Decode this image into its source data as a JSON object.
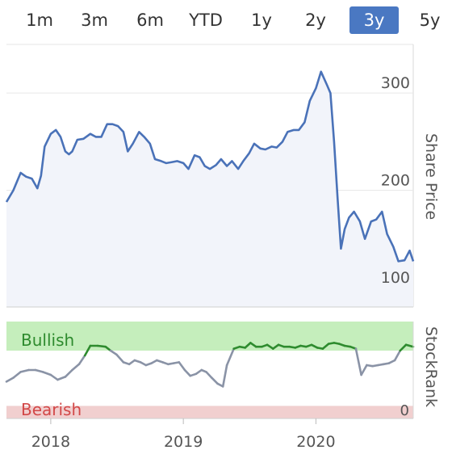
{
  "range_tabs": [
    {
      "label": "1m"
    },
    {
      "label": "3m"
    },
    {
      "label": "6m"
    },
    {
      "label": "YTD"
    },
    {
      "label": "1y"
    },
    {
      "label": "2y"
    },
    {
      "label": "3y",
      "active": true
    },
    {
      "label": "5y"
    }
  ],
  "colors": {
    "active_tab": "#4a78c2",
    "price_line": "#4a72b8",
    "price_fill": "#f2f4fa",
    "bullish_zone": "#c5eebc",
    "bearish_zone": "#f1cfcf",
    "rank_bullish_line": "#2e8b2e",
    "rank_neutral_line": "#8a93a6",
    "bullish_text": "#2e8b2e",
    "bearish_text": "#d24848"
  },
  "chart_data": [
    {
      "type": "line",
      "title": "",
      "ylabel": "Share Price",
      "xlabel": "",
      "ylim": [
        80,
        350
      ],
      "y_ticks": [
        "100",
        "200",
        "300"
      ],
      "x_ticks": [
        "2018",
        "2019",
        "2020"
      ],
      "grid": true,
      "series": [
        {
          "name": "",
          "x": [
            "2017-09-01",
            "2017-09-20",
            "2017-10-10",
            "2017-10-25",
            "2017-11-10",
            "2017-11-25",
            "2017-12-05",
            "2017-12-15",
            "2018-01-01",
            "2018-01-15",
            "2018-01-28",
            "2018-02-10",
            "2018-02-20",
            "2018-03-01",
            "2018-03-15",
            "2018-04-01",
            "2018-04-20",
            "2018-05-05",
            "2018-05-20",
            "2018-06-05",
            "2018-06-20",
            "2018-07-05",
            "2018-07-20",
            "2018-08-01",
            "2018-08-15",
            "2018-09-01",
            "2018-09-15",
            "2018-10-01",
            "2018-10-15",
            "2018-11-01",
            "2018-11-15",
            "2018-12-01",
            "2018-12-15",
            "2019-01-01",
            "2019-01-15",
            "2019-02-01",
            "2019-02-15",
            "2019-03-01",
            "2019-03-15",
            "2019-04-01",
            "2019-04-15",
            "2019-05-01",
            "2019-05-15",
            "2019-06-01",
            "2019-06-15",
            "2019-07-01",
            "2019-07-15",
            "2019-08-01",
            "2019-08-15",
            "2019-09-01",
            "2019-09-15",
            "2019-10-01",
            "2019-10-15",
            "2019-11-01",
            "2019-11-15",
            "2019-12-01",
            "2019-12-15",
            "2020-01-01",
            "2020-01-15",
            "2020-02-01",
            "2020-02-10",
            "2020-02-20",
            "2020-03-01",
            "2020-03-10",
            "2020-03-20",
            "2020-04-01",
            "2020-04-15",
            "2020-05-01",
            "2020-05-15",
            "2020-06-01",
            "2020-06-15",
            "2020-07-01",
            "2020-07-15",
            "2020-08-01",
            "2020-08-15",
            "2020-09-01",
            "2020-09-15",
            "2020-09-25"
          ],
          "y": [
            188,
            200,
            218,
            214,
            212,
            202,
            215,
            245,
            258,
            262,
            255,
            240,
            237,
            240,
            252,
            253,
            258,
            255,
            255,
            268,
            268,
            266,
            260,
            240,
            248,
            260,
            255,
            248,
            232,
            230,
            228,
            229,
            230,
            228,
            222,
            236,
            234,
            225,
            222,
            226,
            232,
            225,
            230,
            222,
            230,
            238,
            248,
            243,
            242,
            245,
            244,
            250,
            260,
            262,
            262,
            270,
            292,
            305,
            322,
            308,
            300,
            250,
            190,
            140,
            160,
            172,
            178,
            168,
            150,
            168,
            170,
            178,
            155,
            142,
            127,
            128,
            138,
            127
          ]
        }
      ]
    },
    {
      "type": "line",
      "title": "",
      "ylabel": "StockRank",
      "xlabel": "",
      "ylim": [
        0,
        100
      ],
      "zones": [
        {
          "label": "Bullish",
          "from": 70,
          "to": 100
        },
        {
          "label": "Bearish",
          "from": 0,
          "to": 13
        }
      ],
      "y_ticks": [
        "0"
      ],
      "x_ticks": [
        "2018",
        "2019",
        "2020"
      ],
      "series": [
        {
          "name": "",
          "x": [
            "2017-09-01",
            "2017-09-20",
            "2017-10-10",
            "2017-11-01",
            "2017-11-20",
            "2017-12-10",
            "2018-01-01",
            "2018-01-20",
            "2018-02-10",
            "2018-03-01",
            "2018-03-20",
            "2018-04-05",
            "2018-04-20",
            "2018-05-10",
            "2018-06-01",
            "2018-06-15",
            "2018-07-01",
            "2018-07-20",
            "2018-08-05",
            "2018-08-20",
            "2018-09-05",
            "2018-09-20",
            "2018-10-05",
            "2018-10-20",
            "2018-11-05",
            "2018-11-20",
            "2018-12-05",
            "2018-12-20",
            "2019-01-05",
            "2019-01-20",
            "2019-02-05",
            "2019-02-20",
            "2019-03-05",
            "2019-03-20",
            "2019-04-05",
            "2019-04-20",
            "2019-05-01",
            "2019-05-20",
            "2019-06-05",
            "2019-06-20",
            "2019-07-05",
            "2019-07-20",
            "2019-08-05",
            "2019-08-20",
            "2019-09-05",
            "2019-09-20",
            "2019-10-05",
            "2019-10-20",
            "2019-11-05",
            "2019-11-20",
            "2019-12-05",
            "2019-12-20",
            "2020-01-05",
            "2020-01-20",
            "2020-02-05",
            "2020-02-20",
            "2020-03-05",
            "2020-03-20",
            "2020-04-05",
            "2020-04-20",
            "2020-05-05",
            "2020-05-20",
            "2020-06-05",
            "2020-06-20",
            "2020-07-05",
            "2020-07-20",
            "2020-08-05",
            "2020-08-20",
            "2020-09-05",
            "2020-09-25"
          ],
          "y": [
            38,
            42,
            48,
            50,
            50,
            48,
            45,
            40,
            43,
            50,
            56,
            65,
            75,
            75,
            74,
            70,
            66,
            58,
            56,
            60,
            58,
            55,
            57,
            60,
            58,
            56,
            57,
            58,
            50,
            44,
            46,
            50,
            48,
            42,
            36,
            33,
            55,
            72,
            74,
            73,
            78,
            74,
            74,
            76,
            72,
            76,
            74,
            74,
            73,
            75,
            74,
            76,
            73,
            72,
            77,
            78,
            77,
            75,
            74,
            72,
            45,
            55,
            54,
            55,
            56,
            57,
            60,
            70,
            76,
            74
          ]
        }
      ]
    }
  ]
}
